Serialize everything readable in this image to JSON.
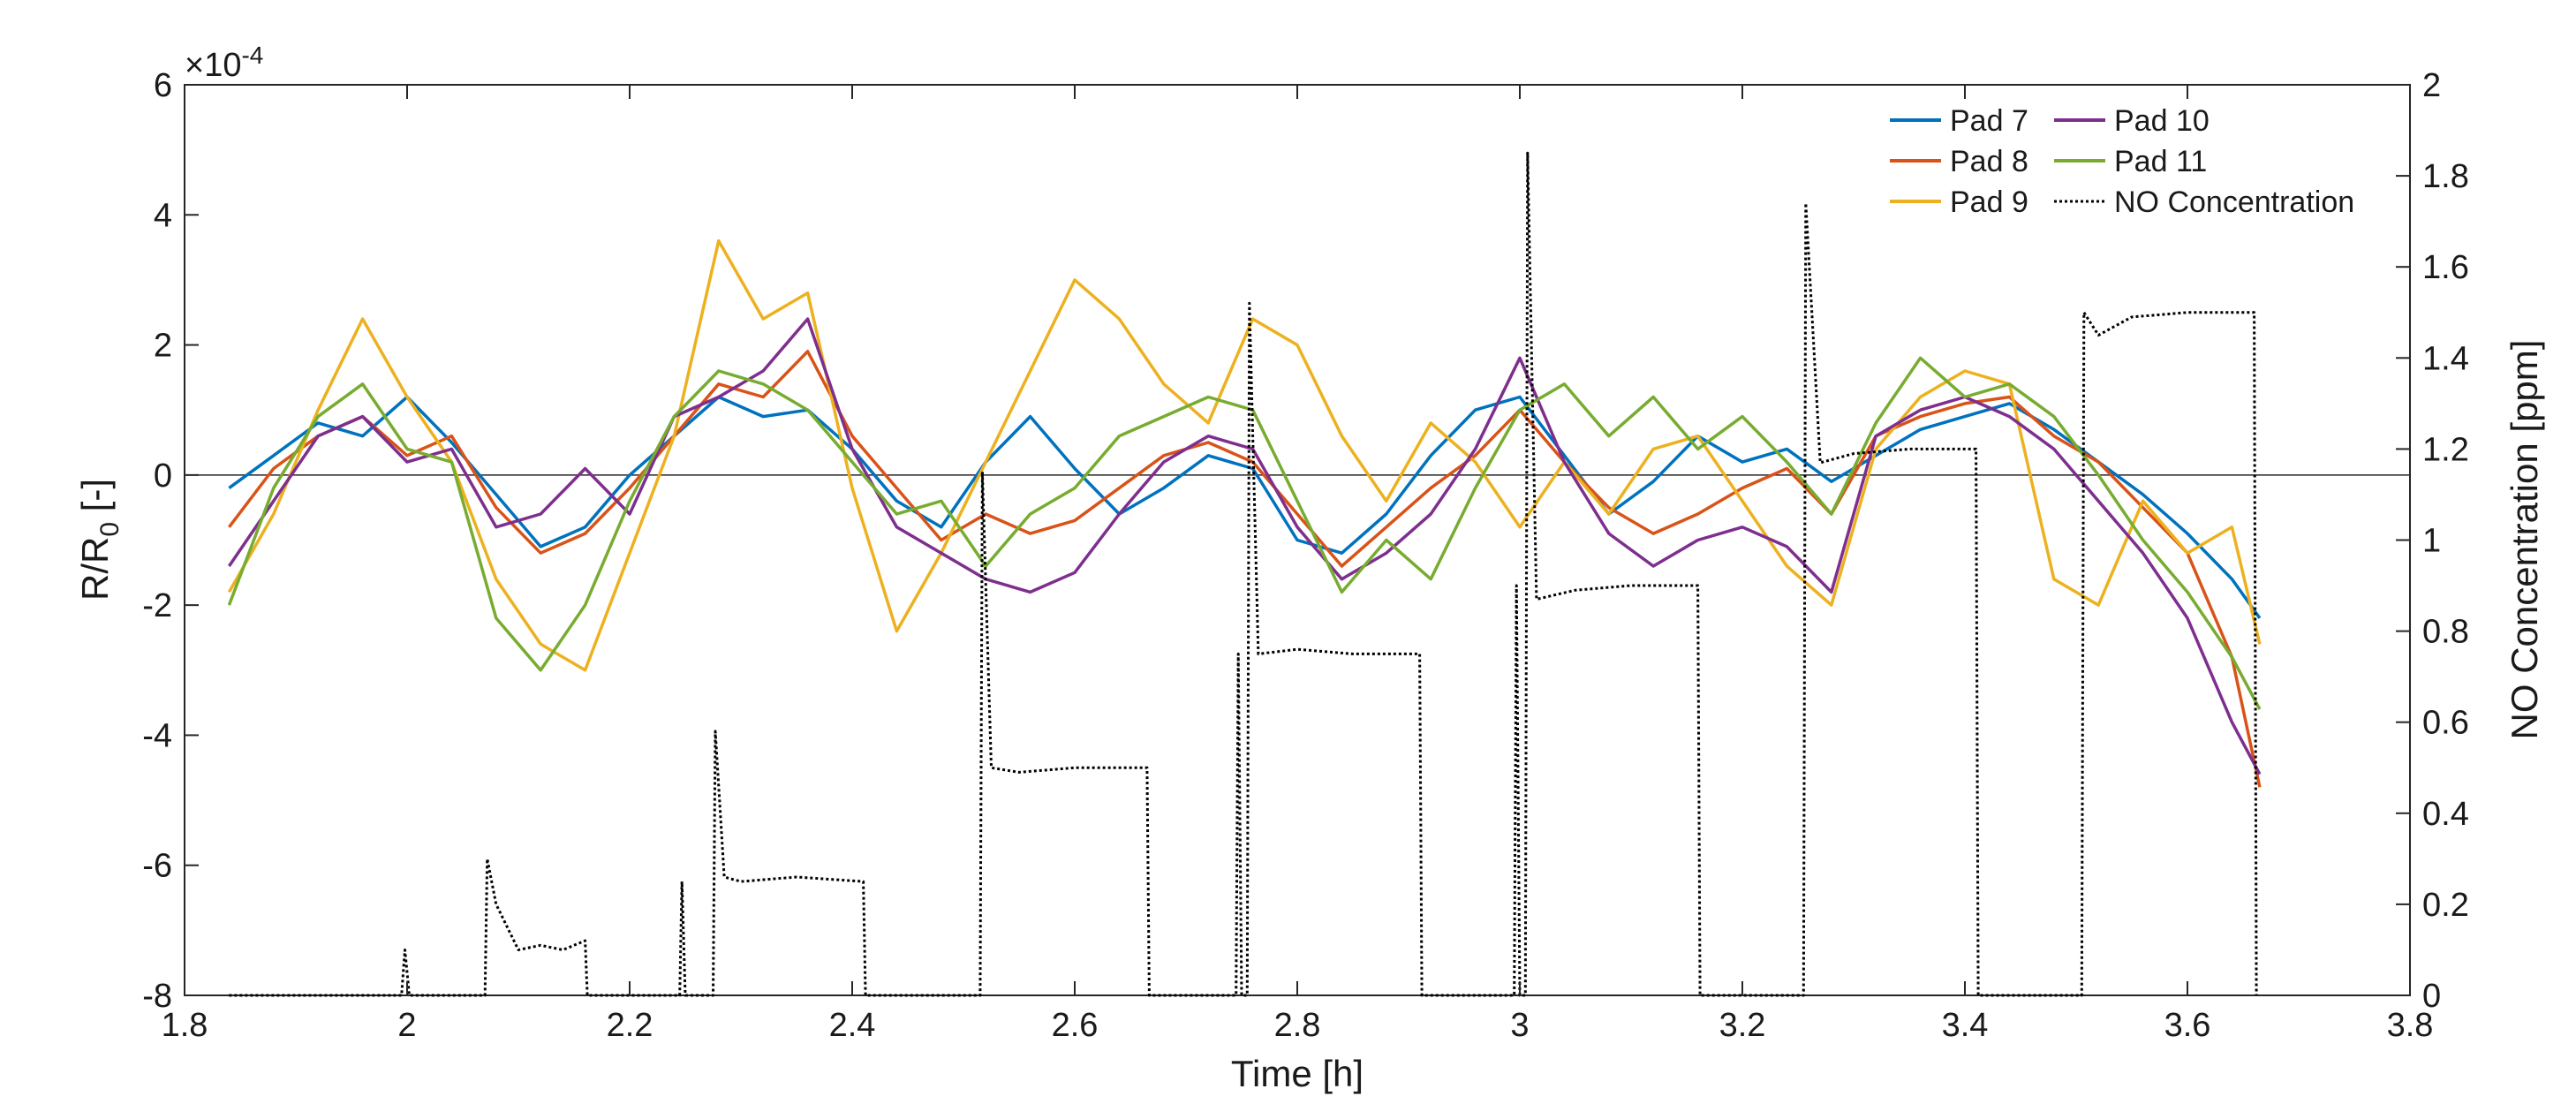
{
  "chart_data": {
    "type": "line",
    "xlabel": "Time [h]",
    "ylabel_left": "R/R",
    "ylabel_left_subscript": "0",
    "ylabel_left_suffix": " [-]",
    "ylabel_right": "NO Concentration [ppm]",
    "exponent_label": "×10",
    "exponent_power": "-4",
    "xlim": [
      1.8,
      3.8
    ],
    "ylim_left": [
      -8,
      6
    ],
    "ylim_right": [
      0,
      2
    ],
    "x_ticks": [
      "1.8",
      "2",
      "2.2",
      "2.4",
      "2.6",
      "2.8",
      "3",
      "3.2",
      "3.4",
      "3.6",
      "3.8"
    ],
    "y_left_ticks": [
      "-8",
      "-6",
      "-4",
      "-2",
      "0",
      "2",
      "4",
      "6"
    ],
    "y_right_ticks": [
      "0",
      "0.2",
      "0.4",
      "0.6",
      "0.8",
      "1",
      "1.2",
      "1.4",
      "1.6",
      "1.8",
      "2"
    ],
    "grid": false,
    "zero_line": true,
    "legend_position": "top-right",
    "series": [
      {
        "name": "Pad 7",
        "axis": "left",
        "color": "#0072BD",
        "x": [
          1.84,
          1.88,
          1.92,
          1.96,
          2.0,
          2.04,
          2.08,
          2.12,
          2.16,
          2.2,
          2.24,
          2.28,
          2.32,
          2.36,
          2.4,
          2.44,
          2.48,
          2.52,
          2.56,
          2.6,
          2.64,
          2.68,
          2.72,
          2.76,
          2.8,
          2.84,
          2.88,
          2.92,
          2.96,
          3.0,
          3.04,
          3.08,
          3.12,
          3.16,
          3.2,
          3.24,
          3.28,
          3.32,
          3.36,
          3.4,
          3.44,
          3.48,
          3.52,
          3.56,
          3.6,
          3.64,
          3.665
        ],
        "y": [
          -0.2,
          0.3,
          0.8,
          0.6,
          1.2,
          0.5,
          -0.3,
          -1.1,
          -0.8,
          0.0,
          0.6,
          1.2,
          0.9,
          1.0,
          0.4,
          -0.4,
          -0.8,
          0.2,
          0.9,
          0.1,
          -0.6,
          -0.2,
          0.3,
          0.1,
          -1.0,
          -1.2,
          -0.6,
          0.3,
          1.0,
          1.2,
          0.3,
          -0.6,
          -0.1,
          0.6,
          0.2,
          0.4,
          -0.1,
          0.3,
          0.7,
          0.9,
          1.1,
          0.7,
          0.2,
          -0.3,
          -0.9,
          -1.6,
          -2.2
        ]
      },
      {
        "name": "Pad 8",
        "axis": "left",
        "color": "#D95319",
        "x": [
          1.84,
          1.88,
          1.92,
          1.96,
          2.0,
          2.04,
          2.08,
          2.12,
          2.16,
          2.2,
          2.24,
          2.28,
          2.32,
          2.36,
          2.4,
          2.44,
          2.48,
          2.52,
          2.56,
          2.6,
          2.64,
          2.68,
          2.72,
          2.76,
          2.8,
          2.84,
          2.88,
          2.92,
          2.96,
          3.0,
          3.04,
          3.08,
          3.12,
          3.16,
          3.2,
          3.24,
          3.28,
          3.32,
          3.36,
          3.4,
          3.44,
          3.48,
          3.52,
          3.56,
          3.6,
          3.64,
          3.665
        ],
        "y": [
          -0.8,
          0.1,
          0.6,
          0.9,
          0.3,
          0.6,
          -0.5,
          -1.2,
          -0.9,
          -0.2,
          0.6,
          1.4,
          1.2,
          1.9,
          0.6,
          -0.2,
          -1.0,
          -0.6,
          -0.9,
          -0.7,
          -0.2,
          0.3,
          0.5,
          0.2,
          -0.6,
          -1.4,
          -0.8,
          -0.2,
          0.3,
          1.0,
          0.2,
          -0.5,
          -0.9,
          -0.6,
          -0.2,
          0.1,
          -0.6,
          0.6,
          0.9,
          1.1,
          1.2,
          0.6,
          0.2,
          -0.5,
          -1.2,
          -2.8,
          -4.8
        ]
      },
      {
        "name": "Pad 9",
        "axis": "left",
        "color": "#EDB120",
        "x": [
          1.84,
          1.88,
          1.92,
          1.96,
          2.0,
          2.04,
          2.08,
          2.12,
          2.16,
          2.2,
          2.24,
          2.28,
          2.32,
          2.36,
          2.4,
          2.44,
          2.48,
          2.52,
          2.56,
          2.6,
          2.64,
          2.68,
          2.72,
          2.76,
          2.8,
          2.84,
          2.88,
          2.92,
          2.96,
          3.0,
          3.04,
          3.08,
          3.12,
          3.16,
          3.2,
          3.24,
          3.28,
          3.32,
          3.36,
          3.4,
          3.44,
          3.48,
          3.52,
          3.56,
          3.6,
          3.64,
          3.665
        ],
        "y": [
          -1.8,
          -0.6,
          1.0,
          2.4,
          1.2,
          0.2,
          -1.6,
          -2.6,
          -3.0,
          -1.2,
          0.6,
          3.6,
          2.4,
          2.8,
          -0.2,
          -2.4,
          -1.2,
          0.2,
          1.6,
          3.0,
          2.4,
          1.4,
          0.8,
          2.4,
          2.0,
          0.6,
          -0.4,
          0.8,
          0.2,
          -0.8,
          0.2,
          -0.6,
          0.4,
          0.6,
          -0.4,
          -1.4,
          -2.0,
          0.4,
          1.2,
          1.6,
          1.4,
          -1.6,
          -2.0,
          -0.4,
          -1.2,
          -0.8,
          -2.6
        ]
      },
      {
        "name": "Pad 10",
        "axis": "left",
        "color": "#7E2F8E",
        "x": [
          1.84,
          1.88,
          1.92,
          1.96,
          2.0,
          2.04,
          2.08,
          2.12,
          2.16,
          2.2,
          2.24,
          2.28,
          2.32,
          2.36,
          2.4,
          2.44,
          2.48,
          2.52,
          2.56,
          2.6,
          2.64,
          2.68,
          2.72,
          2.76,
          2.8,
          2.84,
          2.88,
          2.92,
          2.96,
          3.0,
          3.04,
          3.08,
          3.12,
          3.16,
          3.2,
          3.24,
          3.28,
          3.32,
          3.36,
          3.4,
          3.44,
          3.48,
          3.52,
          3.56,
          3.6,
          3.64,
          3.665
        ],
        "y": [
          -1.4,
          -0.4,
          0.6,
          0.9,
          0.2,
          0.4,
          -0.8,
          -0.6,
          0.1,
          -0.6,
          0.9,
          1.2,
          1.6,
          2.4,
          0.4,
          -0.8,
          -1.2,
          -1.6,
          -1.8,
          -1.5,
          -0.6,
          0.2,
          0.6,
          0.4,
          -0.8,
          -1.6,
          -1.2,
          -0.6,
          0.4,
          1.8,
          0.2,
          -0.9,
          -1.4,
          -1.0,
          -0.8,
          -1.1,
          -1.8,
          0.6,
          1.0,
          1.2,
          0.9,
          0.4,
          -0.4,
          -1.2,
          -2.2,
          -3.8,
          -4.6
        ]
      },
      {
        "name": "Pad 11",
        "axis": "left",
        "color": "#77AC30",
        "x": [
          1.84,
          1.88,
          1.92,
          1.96,
          2.0,
          2.04,
          2.08,
          2.12,
          2.16,
          2.2,
          2.24,
          2.28,
          2.32,
          2.36,
          2.4,
          2.44,
          2.48,
          2.52,
          2.56,
          2.6,
          2.64,
          2.68,
          2.72,
          2.76,
          2.8,
          2.84,
          2.88,
          2.92,
          2.96,
          3.0,
          3.04,
          3.08,
          3.12,
          3.16,
          3.2,
          3.24,
          3.28,
          3.32,
          3.36,
          3.4,
          3.44,
          3.48,
          3.52,
          3.56,
          3.6,
          3.64,
          3.665
        ],
        "y": [
          -2.0,
          -0.2,
          0.9,
          1.4,
          0.4,
          0.2,
          -2.2,
          -3.0,
          -2.0,
          -0.4,
          0.9,
          1.6,
          1.4,
          1.0,
          0.2,
          -0.6,
          -0.4,
          -1.4,
          -0.6,
          -0.2,
          0.6,
          0.9,
          1.2,
          1.0,
          -0.4,
          -1.8,
          -1.0,
          -1.6,
          -0.2,
          1.0,
          1.4,
          0.6,
          1.2,
          0.4,
          0.9,
          0.2,
          -0.6,
          0.8,
          1.8,
          1.2,
          1.4,
          0.9,
          0.0,
          -1.0,
          -1.8,
          -2.8,
          -3.6
        ]
      },
      {
        "name": "NO Concentration",
        "axis": "right",
        "color": "#000000",
        "style": "dotted",
        "x": [
          1.84,
          1.995,
          1.998,
          2.002,
          2.07,
          2.072,
          2.08,
          2.1,
          2.12,
          2.14,
          2.16,
          2.162,
          2.245,
          2.247,
          2.25,
          2.275,
          2.277,
          2.285,
          2.3,
          2.35,
          2.41,
          2.412,
          2.515,
          2.517,
          2.525,
          2.55,
          2.6,
          2.665,
          2.667,
          2.745,
          2.747,
          2.75,
          2.755,
          2.757,
          2.765,
          2.8,
          2.85,
          2.91,
          2.912,
          2.995,
          2.997,
          3.0,
          3.005,
          3.007,
          3.015,
          3.05,
          3.1,
          3.16,
          3.162,
          3.255,
          3.257,
          3.27,
          3.3,
          3.35,
          3.41,
          3.412,
          3.505,
          3.507,
          3.52,
          3.55,
          3.6,
          3.66,
          3.662
        ],
        "y": [
          0,
          0,
          0.1,
          0,
          0,
          0.3,
          0.2,
          0.1,
          0.11,
          0.1,
          0.12,
          0,
          0,
          0.25,
          0,
          0,
          0.58,
          0.26,
          0.25,
          0.26,
          0.25,
          0,
          0,
          1.15,
          0.5,
          0.49,
          0.5,
          0.5,
          0,
          0,
          0.75,
          0,
          0,
          1.52,
          0.75,
          0.76,
          0.75,
          0.75,
          0,
          0,
          0.9,
          0,
          0,
          1.85,
          0.87,
          0.89,
          0.9,
          0.9,
          0,
          0,
          1.74,
          1.17,
          1.19,
          1.2,
          1.2,
          0,
          0,
          1.5,
          1.45,
          1.49,
          1.5,
          1.5,
          0
        ]
      }
    ]
  }
}
